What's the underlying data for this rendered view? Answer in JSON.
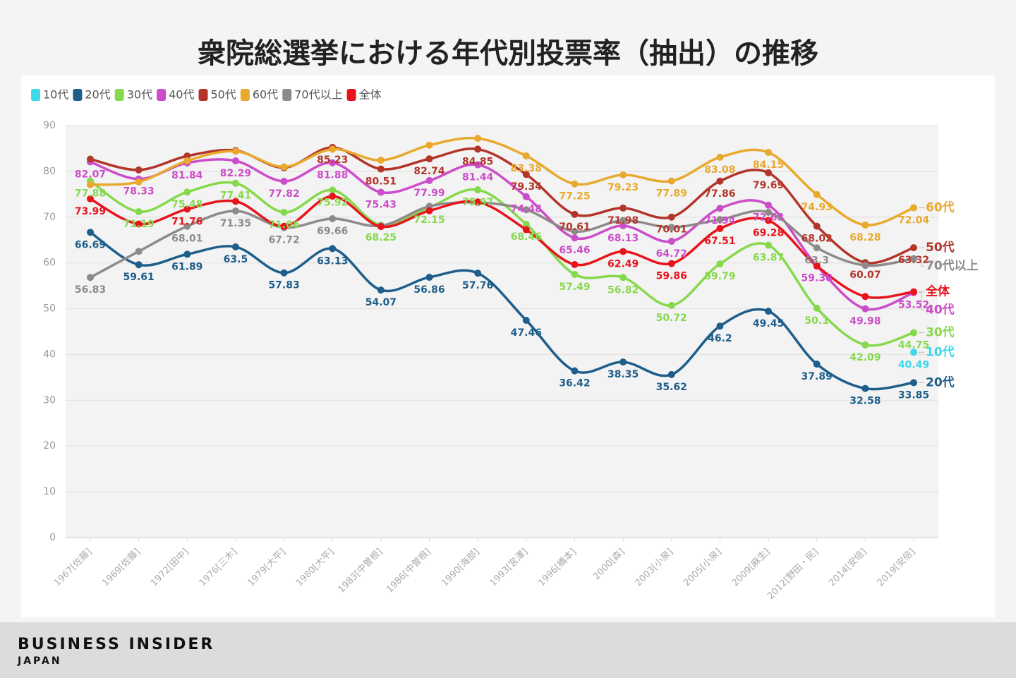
{
  "chart_data": {
    "type": "line",
    "title": "衆院総選挙における年代別投票率（抽出）の推移",
    "categories": [
      "1967[佐藤]",
      "1969[佐藤]",
      "1972[田中]",
      "1976[三木]",
      "1979[大平]",
      "1980[大平]",
      "1983[中曽根]",
      "1986[中曽根]",
      "1990[海部]",
      "1993[宮澤]",
      "1996[橋本]",
      "2000[森]",
      "2003[小泉]",
      "2005[小泉]",
      "2009[麻生]",
      "2012[野田・民]",
      "2014[安倍]",
      "2019[安倍]"
    ],
    "ylim": [
      0,
      90
    ],
    "yticks": [
      0,
      10,
      20,
      30,
      40,
      50,
      60,
      70,
      80,
      90
    ],
    "grid": true,
    "legend": "top-left",
    "series": [
      {
        "name": "10代",
        "color": "#3dd8ea",
        "values": [
          null,
          null,
          null,
          null,
          null,
          null,
          null,
          null,
          null,
          null,
          null,
          null,
          null,
          null,
          null,
          null,
          null,
          40.49
        ],
        "value_labels": [
          null,
          null,
          null,
          null,
          null,
          null,
          null,
          null,
          null,
          null,
          null,
          null,
          null,
          null,
          null,
          null,
          null,
          "40.49"
        ]
      },
      {
        "name": "20代",
        "color": "#1d5e8a",
        "values": [
          66.69,
          59.61,
          61.89,
          63.5,
          57.83,
          63.13,
          54.07,
          56.86,
          57.76,
          47.46,
          36.42,
          38.35,
          35.62,
          46.2,
          49.45,
          37.89,
          32.58,
          33.85
        ],
        "value_labels": [
          "66.69",
          "59.61",
          "61.89",
          "63.5",
          "57.83",
          "63.13",
          "54.07",
          "56.86",
          "57.76",
          "47.46",
          "36.42",
          "38.35",
          "35.62",
          "46.2",
          "49.45",
          "37.89",
          "32.58",
          "33.85"
        ]
      },
      {
        "name": "30代",
        "color": "#86d94c",
        "values": [
          77.88,
          71.19,
          75.48,
          77.41,
          71.06,
          75.92,
          68.25,
          72.15,
          75.97,
          68.46,
          57.49,
          56.82,
          50.72,
          59.79,
          63.87,
          50.1,
          42.09,
          44.75
        ],
        "value_labels": [
          "77.88",
          "71.19",
          "75.48",
          "77.41",
          "71.06",
          "75.92",
          "68.25",
          "72.15",
          "75.97",
          "68.46",
          "57.49",
          "56.82",
          "50.72",
          "59.79",
          "63.87",
          "50.1",
          "42.09",
          "44.75"
        ]
      },
      {
        "name": "40代",
        "color": "#cc4dc9",
        "values": [
          82.07,
          78.33,
          81.84,
          82.29,
          77.82,
          81.88,
          75.43,
          77.99,
          81.44,
          74.48,
          65.46,
          68.13,
          64.72,
          71.94,
          72.63,
          59.38,
          49.98,
          53.52
        ],
        "value_labels": [
          "82.07",
          "78.33",
          "81.84",
          "82.29",
          "77.82",
          "81.88",
          "75.43",
          "77.99",
          "81.44",
          "74.48",
          "65.46",
          "68.13",
          "64.72",
          "71.94",
          "72.63",
          "59.38",
          "49.98",
          "53.52"
        ]
      },
      {
        "name": "50代",
        "color": "#b3352a",
        "values": [
          82.68,
          80.31,
          83.35,
          84.55,
          80.82,
          85.23,
          80.51,
          82.74,
          84.85,
          79.34,
          70.61,
          71.98,
          70.01,
          77.86,
          79.69,
          68.02,
          60.07,
          63.32
        ],
        "value_labels": [
          null,
          null,
          null,
          null,
          null,
          "85.23",
          "80.51",
          "82.74",
          "84.85",
          "79.34",
          "70.61",
          "71.98",
          "70.01",
          "77.86",
          "79.69",
          "68.02",
          "60.07",
          "63.32"
        ]
      },
      {
        "name": "60代",
        "color": "#e9a92c",
        "values": [
          77.08,
          77.7,
          82.3,
          84.38,
          80.99,
          84.84,
          82.43,
          85.72,
          87.21,
          83.38,
          77.25,
          79.23,
          77.89,
          83.08,
          84.15,
          74.93,
          68.28,
          72.04
        ],
        "value_labels": [
          null,
          null,
          null,
          null,
          null,
          null,
          null,
          null,
          null,
          "83.38",
          "77.25",
          "79.23",
          "77.89",
          "83.08",
          "84.15",
          "74.93",
          "68.28",
          "72.04"
        ]
      },
      {
        "name": "70代以上",
        "color": "#8f8a8a",
        "values": [
          56.83,
          62.52,
          68.01,
          71.35,
          67.72,
          69.66,
          68.12,
          72.36,
          73.21,
          71.61,
          66.88,
          69.28,
          67.78,
          69.48,
          71.06,
          63.3,
          59.46,
          60.94
        ],
        "value_labels": [
          "56.83",
          null,
          "68.01",
          "71.35",
          "67.72",
          "69.66",
          null,
          null,
          null,
          null,
          null,
          null,
          null,
          null,
          null,
          "63.3",
          null,
          null
        ]
      },
      {
        "name": "全体",
        "color": "#e8141c",
        "values": [
          73.99,
          68.51,
          71.76,
          73.45,
          68.01,
          74.57,
          67.94,
          71.4,
          73.31,
          67.26,
          59.65,
          62.49,
          59.86,
          67.51,
          69.28,
          59.32,
          52.66,
          53.68
        ],
        "value_labels": [
          "73.99",
          null,
          "71.76",
          null,
          null,
          null,
          null,
          null,
          null,
          null,
          null,
          "62.49",
          "59.86",
          "67.51",
          "69.28",
          null,
          null,
          null
        ]
      }
    ]
  },
  "brand": {
    "name": "BUSINESS INSIDER",
    "region": "JAPAN"
  }
}
